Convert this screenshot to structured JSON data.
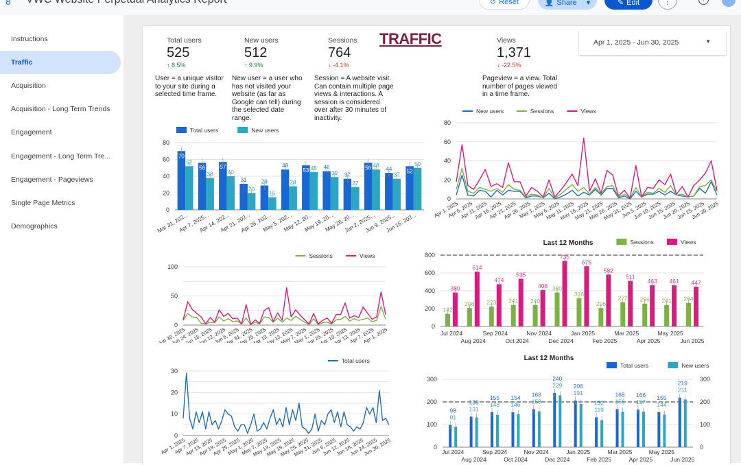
{
  "app": {
    "title": "VWC Website Perpetual Analytics Report",
    "buttons": {
      "reset": "Reset",
      "share": "Share",
      "edit": "Edit",
      "more": "⋮",
      "help": "?"
    }
  },
  "sidebar": {
    "items": [
      {
        "label": "Instructions"
      },
      {
        "label": "Traffic",
        "active": true
      },
      {
        "label": "Acquisition"
      },
      {
        "label": "Acquisition - Long Term Trends"
      },
      {
        "label": "Engagement"
      },
      {
        "label": "Engagement - Long Term Tre..."
      },
      {
        "label": "Engagement - Pageviews"
      },
      {
        "label": "Single Page Metrics"
      },
      {
        "label": "Demographics"
      }
    ]
  },
  "page": {
    "heading": "TRAFFIC",
    "date_range": "Apr 1, 2025 - Jun 30, 2025"
  },
  "kpis": [
    {
      "label": "Total users",
      "value": "525",
      "delta": "↑ 8.5%",
      "trend": "up",
      "desc": "User = a unique visitor to your site during a selected time frame."
    },
    {
      "label": "New users",
      "value": "512",
      "delta": "↑ 9.9%",
      "trend": "up",
      "desc": "New user = a user who has not visited your website (as far as Google can tell) during the selected date range."
    },
    {
      "label": "Sessions",
      "value": "764",
      "delta": "↓ -4.1%",
      "trend": "down",
      "desc": "Session = A website visit. Can contain multiple page views & interactions. A session is considered over after 30 minutes of inactivity."
    },
    {
      "label": "Views",
      "value": "1,371",
      "delta": "↓ -22.5%",
      "trend": "down",
      "desc": "Pageview = a view. Total number of pages viewed in a time frame."
    }
  ],
  "colors": {
    "total_users": "#1967d2",
    "new_users": "#2ba7c3",
    "new_users_line": "#1f6fb4",
    "sessions": "#7cb342",
    "views": "#d81b7f",
    "grid": "#e0e0e0"
  },
  "chart_data": [
    {
      "id": "weekly",
      "type": "bar",
      "title": "",
      "categories": [
        "Mar 31, 202...",
        "Apr 7, 2025...",
        "Apr 14, 202...",
        "Apr 21, 202...",
        "Apr 28, 202...",
        "May 5, 202...",
        "May 12, 20...",
        "May 19, 20...",
        "May 26, 20...",
        "Jun 2, 2025...",
        "Jun 9, 2025...",
        "Jun 16, 202..."
      ],
      "series": [
        {
          "name": "Total users",
          "color": "#1967d2",
          "values": [
            70,
            56,
            57,
            31,
            29,
            48,
            53,
            46,
            37,
            56,
            44,
            52
          ]
        },
        {
          "name": "New users",
          "color": "#2ba7c3",
          "values": [
            52,
            38,
            40,
            20,
            15,
            28,
            45,
            39,
            27,
            48,
            37,
            50
          ]
        }
      ],
      "ylim": [
        0,
        80
      ],
      "yticks": [
        "0",
        "20",
        "40",
        "60",
        "80"
      ],
      "legend": "top-left",
      "grid": true
    },
    {
      "id": "daily",
      "type": "line",
      "title": "",
      "x_labels": [
        "Apr 1, 2025",
        "Apr 6, 2025",
        "Apr 11, 2025",
        "Apr 16, 2025",
        "Apr 21, 2025",
        "Apr 26, 2025",
        "May 1, 2025",
        "May 6, 2025",
        "May 11, 2025",
        "May 16, 2025",
        "May 21, 2025",
        "May 26, 2025",
        "May 31, 2025",
        "Jun 5, 2025",
        "Jun 10, 2025",
        "Jun 15, 2025",
        "Jun 20, 2025",
        "Jun 25, 2025",
        "Jun 30, 2025"
      ],
      "series": [
        {
          "name": "New users",
          "color": "#1f6fb4",
          "values": [
            4,
            25,
            4,
            3,
            9,
            8,
            2,
            9,
            4,
            9,
            8,
            8,
            1,
            3,
            3,
            1,
            6,
            0,
            2,
            5,
            9,
            3,
            7,
            4,
            10,
            4,
            11,
            11,
            1,
            3,
            0,
            8,
            2,
            5,
            5,
            8,
            4,
            8,
            4,
            3,
            2,
            3,
            11,
            6,
            18,
            4
          ]
        },
        {
          "name": "Sessions",
          "color": "#7cb342",
          "values": [
            10,
            32,
            8,
            6,
            12,
            10,
            8,
            11,
            7,
            15,
            10,
            9,
            2,
            5,
            4,
            1,
            11,
            1,
            5,
            10,
            15,
            8,
            12,
            5,
            12,
            5,
            13,
            14,
            2,
            5,
            1,
            12,
            2,
            7,
            6,
            11,
            7,
            14,
            4,
            5,
            2,
            3,
            13,
            14,
            20,
            8
          ]
        },
        {
          "name": "Views",
          "color": "#d81b7f",
          "values": [
            18,
            57,
            14,
            10,
            20,
            31,
            13,
            16,
            12,
            38,
            18,
            18,
            3,
            12,
            8,
            2,
            20,
            2,
            9,
            17,
            26,
            14,
            64,
            8,
            21,
            6,
            30,
            25,
            3,
            9,
            1,
            35,
            2,
            12,
            11,
            20,
            15,
            26,
            5,
            13,
            2,
            14,
            20,
            27,
            40,
            9
          ]
        }
      ],
      "ylim": [
        0,
        80
      ],
      "yticks": [
        "0",
        "20",
        "40",
        "60",
        "80"
      ],
      "legend": "top-left",
      "grid": true
    },
    {
      "id": "daily-desc",
      "type": "line",
      "title": "",
      "x_labels": [
        "Jun 30, 2025",
        "Jun 24, 2025",
        "Jun 18, 2025",
        "Jun 12, 2025",
        "Jun 6, 2025",
        "May 31, 2025",
        "May 25, 2025",
        "May 19, 2025",
        "May 13, 2025",
        "May 7, 2025",
        "May 1, 2025",
        "Apr 25, 2025",
        "Apr 19, 2025",
        "Apr 13, 2025",
        "Apr 7, 2025",
        "Apr 1, 2025"
      ],
      "series": [
        {
          "name": "Sessions",
          "color": "#7cb342",
          "values": [
            8,
            20,
            14,
            13,
            3,
            2,
            5,
            4,
            14,
            7,
            11,
            6,
            7,
            2,
            12,
            1,
            5,
            2,
            14,
            13,
            5,
            12,
            5,
            12,
            8,
            15,
            10,
            5,
            1,
            11,
            1,
            4,
            5,
            2,
            9,
            10,
            15,
            7,
            11,
            8,
            10,
            12,
            6,
            8,
            32,
            10
          ]
        },
        {
          "name": "Views",
          "color": "#d81b7f",
          "values": [
            9,
            40,
            27,
            20,
            14,
            2,
            13,
            5,
            26,
            15,
            20,
            11,
            12,
            2,
            35,
            1,
            9,
            3,
            25,
            30,
            6,
            21,
            8,
            64,
            14,
            26,
            17,
            9,
            2,
            20,
            2,
            8,
            12,
            3,
            18,
            18,
            38,
            12,
            16,
            13,
            31,
            20,
            10,
            14,
            57,
            18
          ]
        }
      ],
      "ylim": [
        0,
        100
      ],
      "yticks": [
        "0",
        "",
        "50",
        "",
        "100"
      ],
      "legend": "top-right",
      "grid": true
    },
    {
      "id": "daily-users",
      "type": "line",
      "title": "",
      "x_labels": [
        "Apr 1, 2025",
        "Apr 7, 2025",
        "Apr 13, 2025",
        "Apr 19, 2025",
        "Apr 25, 2025",
        "May 1, 2025",
        "May 7, 2025",
        "May 13, 2025",
        "May 19, 2025",
        "May 25, 2025",
        "May 31, 2025",
        "Jun 6, 2025",
        "Jun 12, 2025",
        "Jun 18, 2025",
        "Jun 24, 2025",
        "Jun 30, 2025"
      ],
      "series": [
        {
          "name": "Total users",
          "color": "#1f6fb4",
          "values": [
            8,
            29,
            8,
            3,
            11,
            6,
            11,
            3,
            11,
            5,
            7,
            3,
            7,
            12,
            10,
            9,
            4,
            2,
            5,
            5,
            1,
            5,
            10,
            2,
            3,
            6,
            3,
            8,
            12,
            5,
            8,
            4,
            13,
            5,
            12,
            7,
            15,
            4,
            3,
            1,
            3,
            10,
            2,
            7,
            5,
            10,
            12,
            6,
            11,
            4,
            11,
            5,
            4,
            2,
            4,
            3,
            6,
            13,
            10,
            13,
            6,
            21,
            7,
            8,
            5
          ]
        }
      ],
      "ylim": [
        0,
        30
      ],
      "yticks": [
        "0",
        "",
        "10",
        "",
        "20",
        "",
        "30"
      ],
      "legend": "top-right",
      "grid": true
    },
    {
      "id": "monthly-traffic",
      "type": "bar",
      "title": "Last 12 Months",
      "categories": [
        "Jul 2024",
        "Aug 2024",
        "Sep 2024",
        "Oct 2024",
        "Nov 2024",
        "Dec 2024",
        "Jan 2025",
        "Feb 2025",
        "Mar 2025",
        "Apr 2025",
        "May 2025",
        "Jun 2025"
      ],
      "series": [
        {
          "name": "Sessions",
          "color": "#7cb342",
          "values": [
            142,
            206,
            223,
            241,
            240,
            380,
            316,
            206,
            272,
            256,
            241,
            264
          ]
        },
        {
          "name": "Views",
          "color": "#d81b7f",
          "values": [
            380,
            614,
            474,
            535,
            408,
            735,
            675,
            582,
            511,
            463,
            461,
            447
          ]
        }
      ],
      "ylim": [
        0,
        800
      ],
      "yticks": [
        "0",
        "200",
        "400",
        "600",
        "800"
      ],
      "reference_line": 800,
      "legend": "top-right",
      "grid": true
    },
    {
      "id": "monthly-users",
      "type": "bar",
      "title": "Last 12 Months",
      "categories": [
        "Jul 2024",
        "Aug 2024",
        "Sep 2024",
        "Oct 2024",
        "Nov 2024",
        "Dec 2024",
        "Jan 2025",
        "Feb 2025",
        "Mar 2025",
        "Apr 2025",
        "May 2025",
        "Jun 2025"
      ],
      "series": [
        {
          "name": "Total users",
          "color": "#1967d2",
          "values": [
            98,
            135,
            155,
            154,
            168,
            240,
            206,
            132,
            168,
            166,
            155,
            219
          ]
        },
        {
          "name": "New users",
          "color": "#2ba7c3",
          "values": [
            91,
            131,
            143,
            146,
            158,
            229,
            191,
            119,
            156,
            157,
            144,
            211
          ]
        }
      ],
      "ylim": [
        0,
        300
      ],
      "yticks": [
        "0",
        "100",
        "200",
        "300"
      ],
      "reference_line": 200,
      "legend": "top-right",
      "grid": true,
      "right_axis": true
    }
  ]
}
